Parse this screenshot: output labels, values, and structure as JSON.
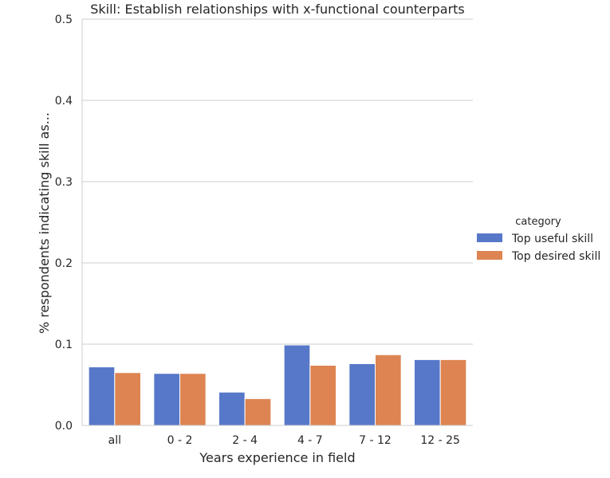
{
  "chart_data": {
    "type": "bar",
    "title": "Skill: Establish relationships with x-functional counterparts",
    "xlabel": "Years experience in field",
    "ylabel": "% respondents indicating skill as...",
    "categories": [
      "all",
      "0 - 2",
      "2 - 4",
      "4 - 7",
      "7 - 12",
      "12 - 25"
    ],
    "series": [
      {
        "name": "Top useful skill",
        "color": "#5778c9",
        "values": [
          0.072,
          0.064,
          0.041,
          0.099,
          0.076,
          0.081
        ]
      },
      {
        "name": "Top desired skill",
        "color": "#dd8452",
        "values": [
          0.065,
          0.064,
          0.033,
          0.074,
          0.087,
          0.081
        ]
      }
    ],
    "ylim": [
      0,
      0.5
    ],
    "yticks": [
      "0.0",
      "0.1",
      "0.2",
      "0.3",
      "0.4",
      "0.5"
    ],
    "grid": "horizontal",
    "legend": {
      "title": "category",
      "placement": "right"
    }
  }
}
